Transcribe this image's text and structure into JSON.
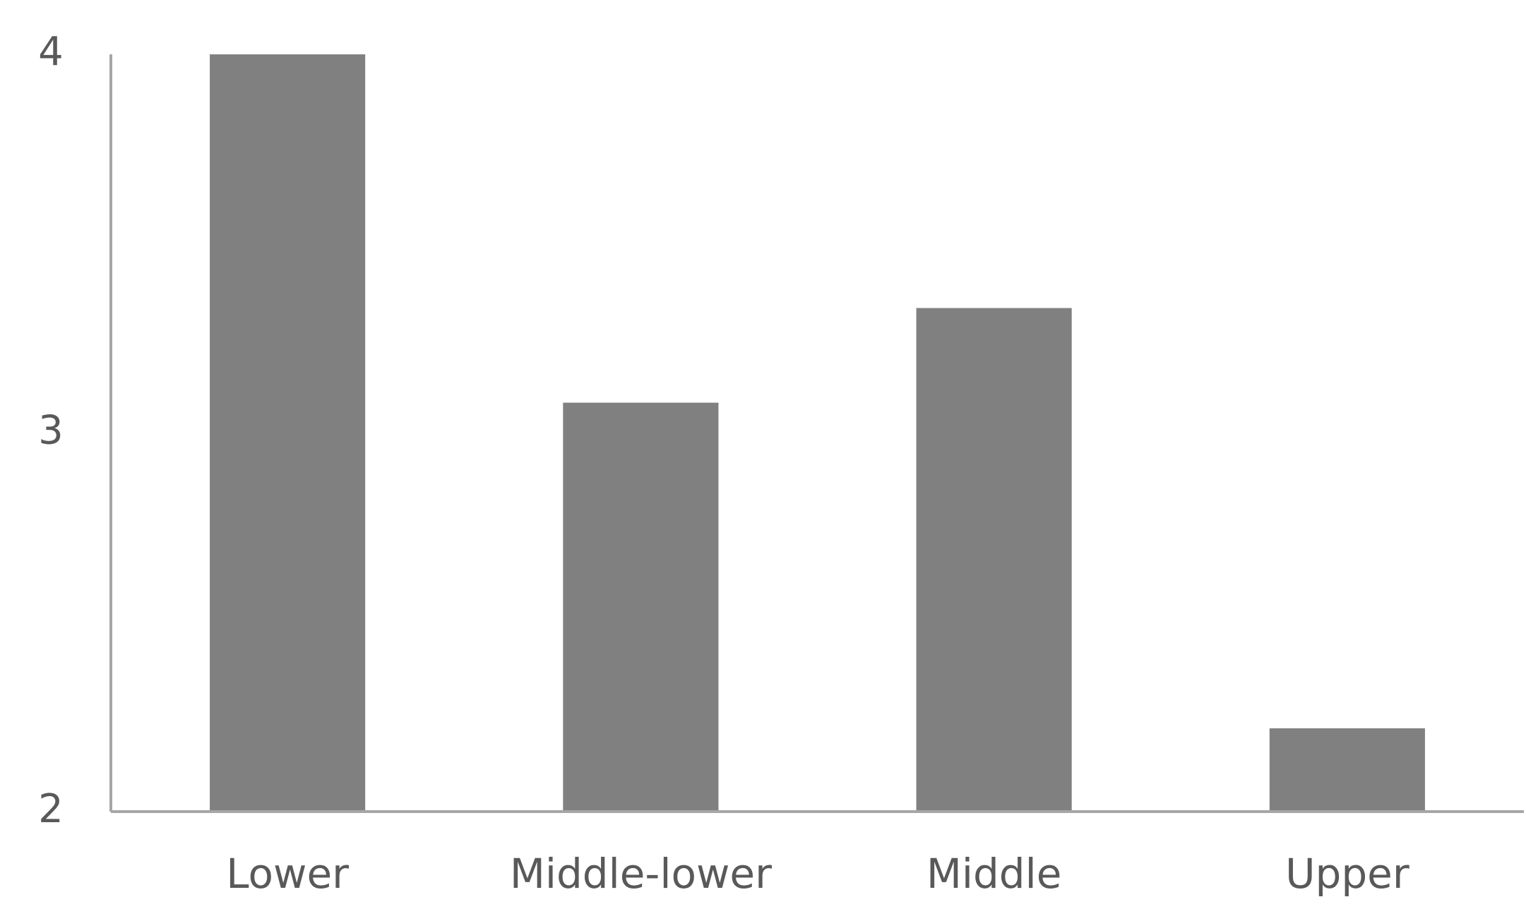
{
  "chart_data": {
    "type": "bar",
    "categories": [
      "Lower",
      "Middle-lower",
      "Middle",
      "Upper"
    ],
    "values": [
      4.0,
      3.08,
      3.33,
      2.22
    ],
    "color": "#808080",
    "ylim": [
      2,
      4
    ],
    "yticks": [
      2,
      3,
      4
    ],
    "grid": false
  }
}
